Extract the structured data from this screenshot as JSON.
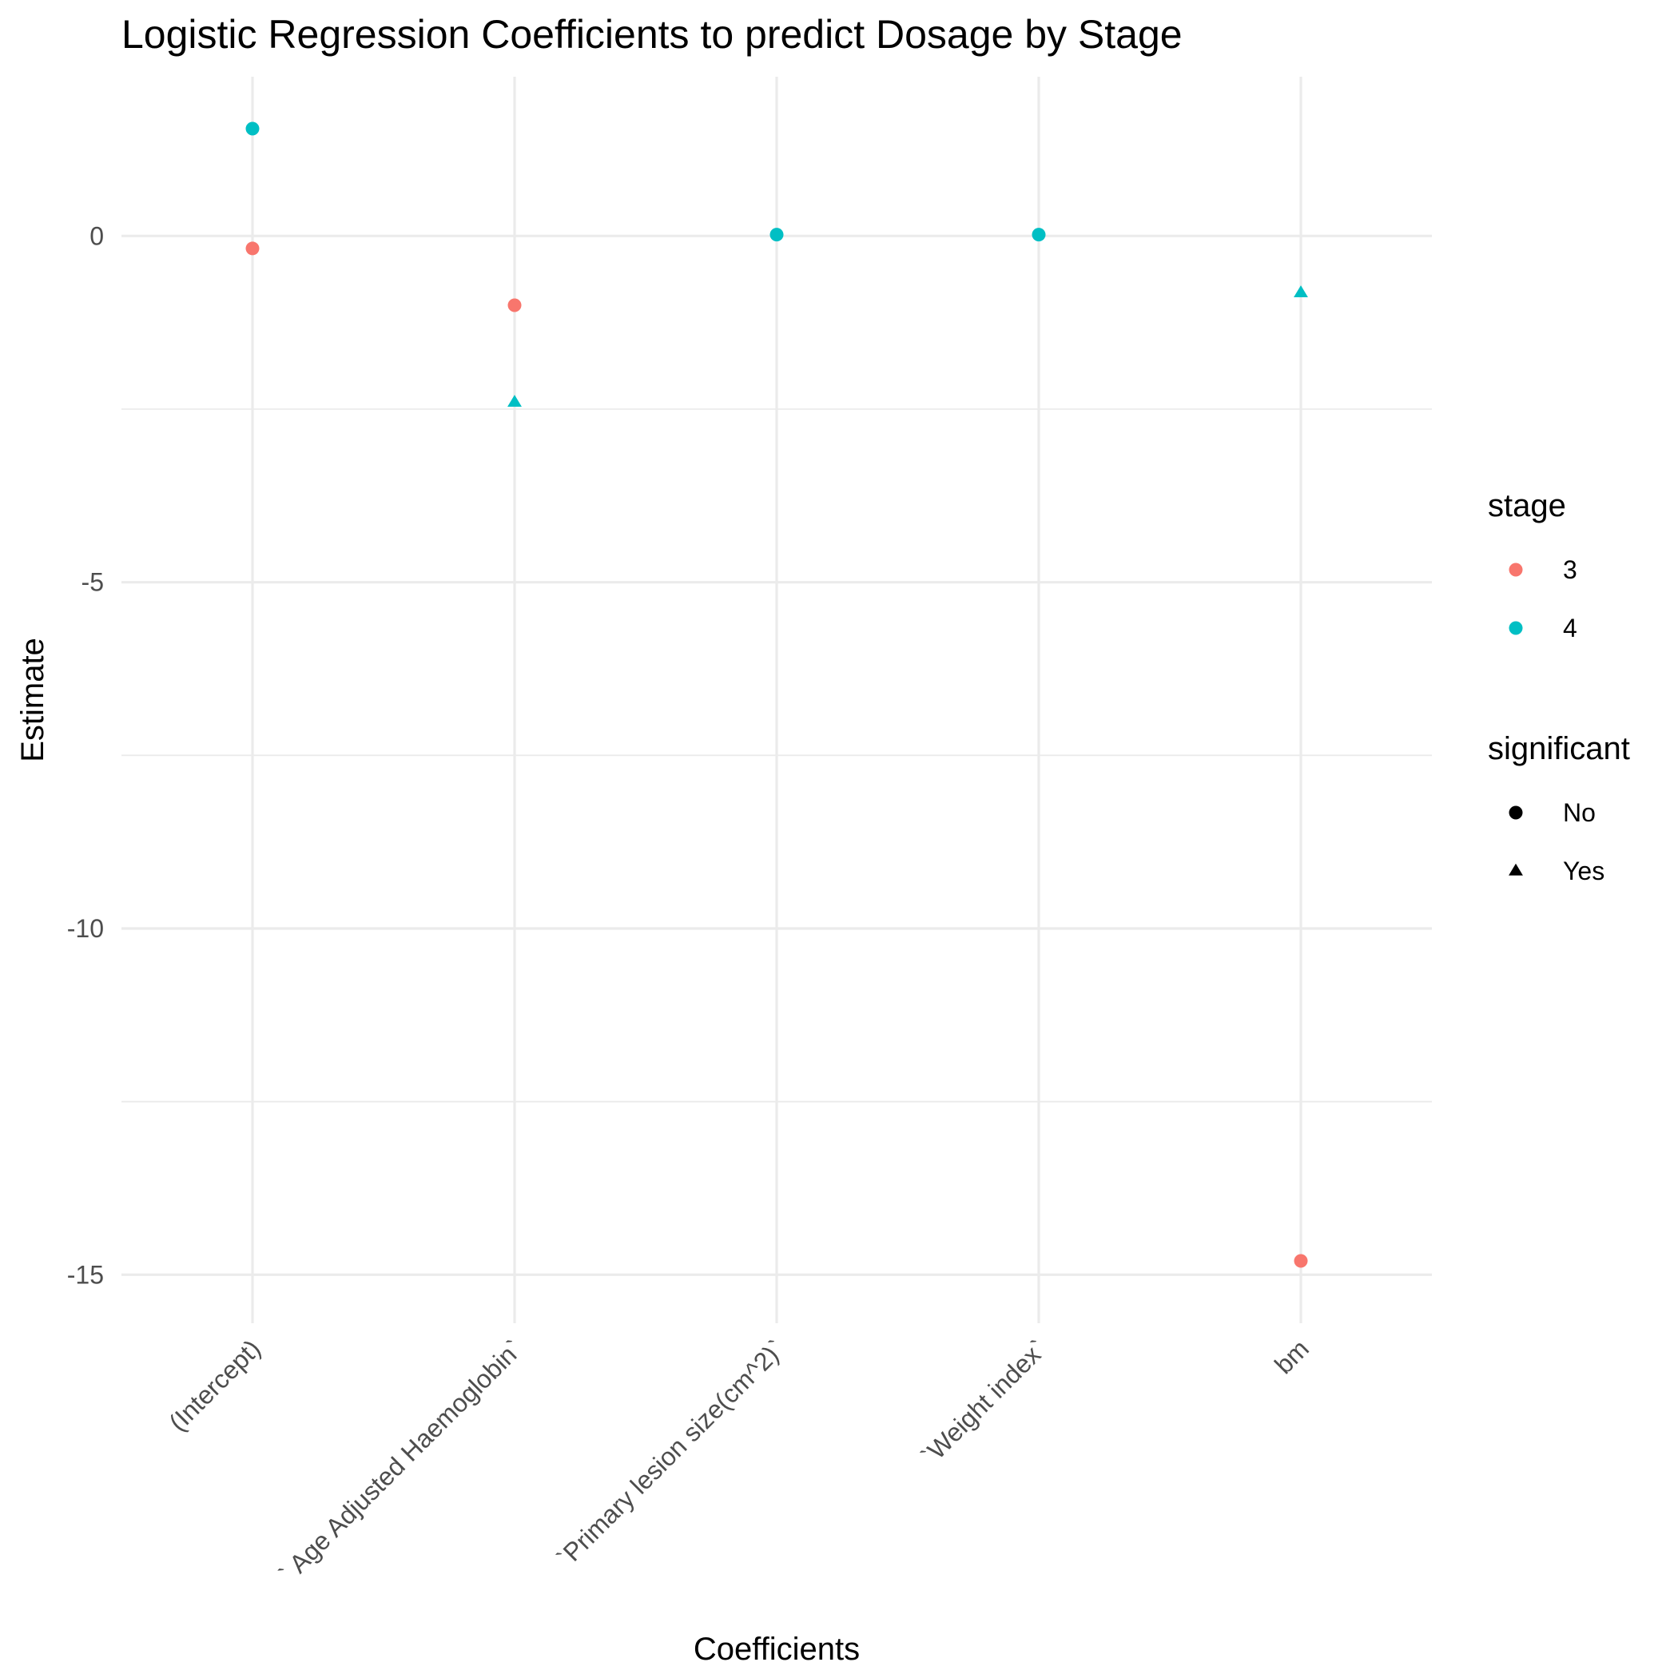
{
  "chart_data": {
    "type": "scatter",
    "title": "Logistic Regression Coefficients to predict Dosage by Stage",
    "xlabel": "Coefficients",
    "ylabel": "Estimate",
    "categories": [
      "(Intercept)",
      "` Age Adjusted Haemoglobin`",
      "`Primary lesion size(cm^2)`",
      "`Weight index`",
      "bm"
    ],
    "y_ticks": [
      0,
      -5,
      -10,
      -15
    ],
    "y_tick_labels": [
      "0",
      "-5",
      "-10",
      "-15"
    ],
    "ylim": [
      -15.7,
      2.3
    ],
    "grid": true,
    "legend_placement": "right",
    "legends": [
      {
        "title": "stage",
        "entries": [
          {
            "label": "3",
            "color": "#F8766D"
          },
          {
            "label": "4",
            "color": "#00BFC4"
          }
        ]
      },
      {
        "title": "significant",
        "entries": [
          {
            "label": "No",
            "shape": "circle"
          },
          {
            "label": "Yes",
            "shape": "triangle"
          }
        ]
      }
    ],
    "points": [
      {
        "x": "(Intercept)",
        "y": 1.55,
        "stage": "4",
        "significant": "No"
      },
      {
        "x": "(Intercept)",
        "y": -0.18,
        "stage": "3",
        "significant": "No"
      },
      {
        "x": "` Age Adjusted Haemoglobin`",
        "y": -1.0,
        "stage": "3",
        "significant": "No"
      },
      {
        "x": "` Age Adjusted Haemoglobin`",
        "y": -2.4,
        "stage": "4",
        "significant": "Yes"
      },
      {
        "x": "`Primary lesion size(cm^2)`",
        "y": 0.02,
        "stage": "4",
        "significant": "No"
      },
      {
        "x": "`Weight index`",
        "y": 0.02,
        "stage": "4",
        "significant": "No"
      },
      {
        "x": "bm",
        "y": -0.82,
        "stage": "4",
        "significant": "Yes"
      },
      {
        "x": "bm",
        "y": -14.8,
        "stage": "3",
        "significant": "No"
      }
    ]
  }
}
